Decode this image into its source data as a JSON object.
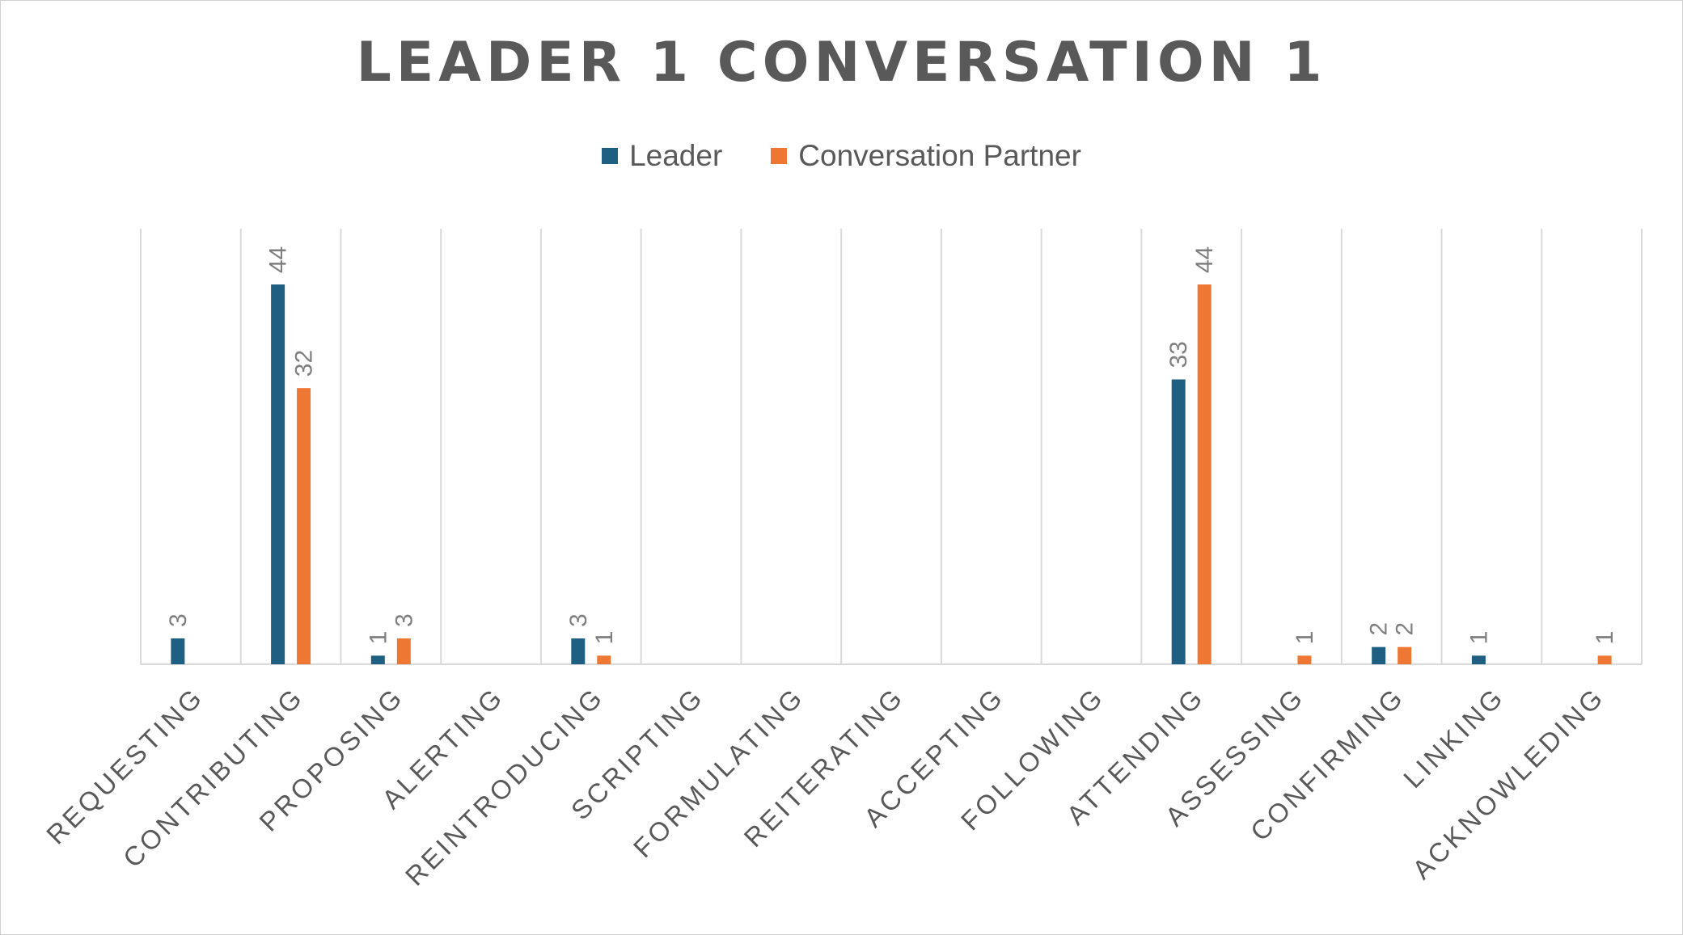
{
  "chart_data": {
    "type": "bar",
    "title": "LEADER 1 CONVERSATION 1",
    "xlabel": "",
    "ylabel": "",
    "categories": [
      "REQUESTING",
      "CONTRIBUTING",
      "PROPOSING",
      "ALERTING",
      "REINTRODUCING",
      "SCRIPTING",
      "FORMULATING",
      "REITERATING",
      "ACCEPTING",
      "FOLLOWING",
      "ATTENDING",
      "ASSESSING",
      "CONFIRMING",
      "LINKING",
      "ACKNOWLEDING"
    ],
    "series": [
      {
        "name": "Leader",
        "color": "#1f5f82",
        "values": [
          3,
          44,
          1,
          null,
          3,
          null,
          null,
          null,
          null,
          null,
          33,
          null,
          2,
          1,
          null
        ]
      },
      {
        "name": "Conversation Partner",
        "color": "#ed7733",
        "values": [
          null,
          32,
          3,
          null,
          1,
          null,
          null,
          null,
          null,
          null,
          44,
          1,
          2,
          null,
          1
        ]
      }
    ],
    "ylim": [
      0,
      50
    ],
    "grid": "vertical",
    "legend_position": "top"
  }
}
